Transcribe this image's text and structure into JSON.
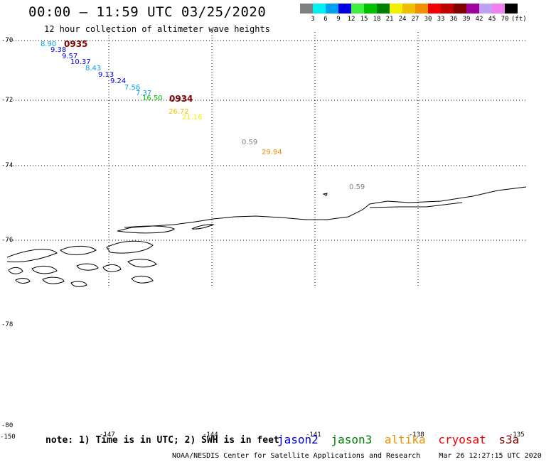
{
  "header": {
    "title": "00:00 – 11:59 UTC 03/25/2020",
    "subtitle": "12 hour collection of altimeter wave heights"
  },
  "legend": {
    "colors": [
      "#808080",
      "#00f0f0",
      "#00a0f0",
      "#0000e0",
      "#40f040",
      "#00c000",
      "#008000",
      "#f0f000",
      "#f0c000",
      "#f09000",
      "#f00000",
      "#c00000",
      "#800000",
      "#a000a0",
      "#c0a0f0",
      "#f080f0",
      "#000000"
    ],
    "labels": [
      "3",
      "6",
      "9",
      "12",
      "15",
      "18",
      "21",
      "24",
      "27",
      "30",
      "33",
      "36",
      "39",
      "42",
      "45",
      "70",
      "(ft)"
    ]
  },
  "map": {
    "lat_labels": [
      "-70",
      "-72",
      "-74",
      "-76",
      "-78",
      "-80"
    ],
    "lon_labels": [
      "-150",
      "-147",
      "-144",
      "-141",
      "-138",
      "-135"
    ]
  },
  "observations": [
    {
      "text": "8.90",
      "color": "#00a0f0"
    },
    {
      "text": "9.38",
      "color": "#0000e0"
    },
    {
      "text": "9.57",
      "color": "#0000e0"
    },
    {
      "text": "10.37",
      "color": "#0000e0"
    },
    {
      "text": "8.43",
      "color": "#00a0f0"
    },
    {
      "text": "9.13",
      "color": "#0000e0"
    },
    {
      "text": "9.24",
      "color": "#0000e0"
    },
    {
      "text": "7.56",
      "color": "#00a0f0"
    },
    {
      "text": "7.37",
      "color": "#00a0f0"
    },
    {
      "text": "16.50",
      "color": "#00c000"
    },
    {
      "text": "26.72",
      "color": "#f0c000"
    },
    {
      "text": "21.16",
      "color": "#f0f000"
    },
    {
      "text": "0.59",
      "color": "#808080"
    },
    {
      "text": "29.94",
      "color": "#f09000"
    },
    {
      "text": "0.59",
      "color": "#808080"
    }
  ],
  "passes": [
    {
      "text": "0935"
    },
    {
      "text": "0934"
    }
  ],
  "footer": {
    "note": "note: 1) Time is in UTC; 2) SWH is in feet",
    "satellites": [
      {
        "name": "jason2",
        "color": "#0000e0"
      },
      {
        "name": "jason3",
        "color": "#008000"
      },
      {
        "name": "altika",
        "color": "#f09000"
      },
      {
        "name": "cryosat",
        "color": "#f00000"
      },
      {
        "name": "s3a",
        "color": "#800000"
      }
    ],
    "credit": "NOAA/NESDIS Center for Satellite Applications and Research",
    "timestamp": "Mar 26 12:27:15 UTC 2020"
  }
}
